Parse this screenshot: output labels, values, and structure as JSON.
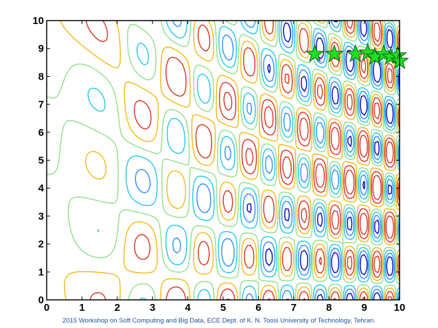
{
  "chart_data": {
    "type": "contour",
    "title": "",
    "xlabel": "",
    "ylabel": "",
    "xlim": [
      0,
      10
    ],
    "ylim": [
      0,
      10
    ],
    "x_ticks": [
      "0",
      "1",
      "2",
      "3",
      "4",
      "5",
      "6",
      "7",
      "8",
      "9",
      "10"
    ],
    "y_ticks": [
      "0",
      "1",
      "2",
      "3",
      "4",
      "5",
      "6",
      "7",
      "8",
      "9",
      "10"
    ],
    "grid": false,
    "contour_colors": [
      "#0000b4",
      "#2a8cff",
      "#20c8e6",
      "#8ee08a",
      "#f2b810",
      "#d83020"
    ],
    "marker_color": "#22dd22",
    "marker_shape": "star",
    "star_markers": [
      {
        "x": 7.6,
        "y": 8.8
      },
      {
        "x": 8.15,
        "y": 8.8
      },
      {
        "x": 8.75,
        "y": 8.8
      },
      {
        "x": 9.1,
        "y": 8.85
      },
      {
        "x": 9.3,
        "y": 8.7
      },
      {
        "x": 9.55,
        "y": 8.8
      },
      {
        "x": 9.75,
        "y": 8.7
      },
      {
        "x": 9.95,
        "y": 8.75
      },
      {
        "x": 10.0,
        "y": 8.55
      }
    ]
  },
  "footer": {
    "text": "2015 Workshop on Soft Computing and Big Data, ECE Dept. of K. N. Toosi University of Technology, Tehran."
  }
}
